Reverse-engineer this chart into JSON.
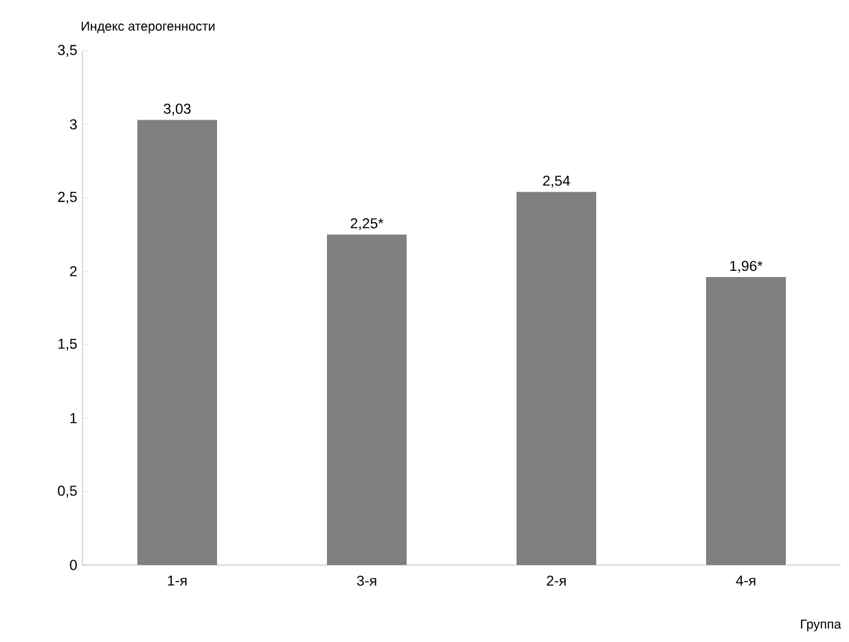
{
  "chart_data": {
    "type": "bar",
    "ylabel": "Индекс атерогенности",
    "xlabel": "Группа",
    "categories": [
      "1-я",
      "3-я",
      "2-я",
      "4-я"
    ],
    "values": [
      3.03,
      2.25,
      2.54,
      1.96
    ],
    "value_labels": [
      "3,03",
      "2,25*",
      "2,54",
      "1,96*"
    ],
    "color": "#7f7f7f",
    "ylim": [
      0,
      3.5
    ],
    "yticks": [
      0,
      {
        "value": 0.5,
        "label": "0,5"
      },
      1,
      {
        "value": 1.5,
        "label": "1,5"
      },
      2,
      {
        "value": 2.5,
        "label": "2,5"
      },
      3,
      {
        "value": 3.5,
        "label": "3,5"
      }
    ],
    "grid": false
  }
}
